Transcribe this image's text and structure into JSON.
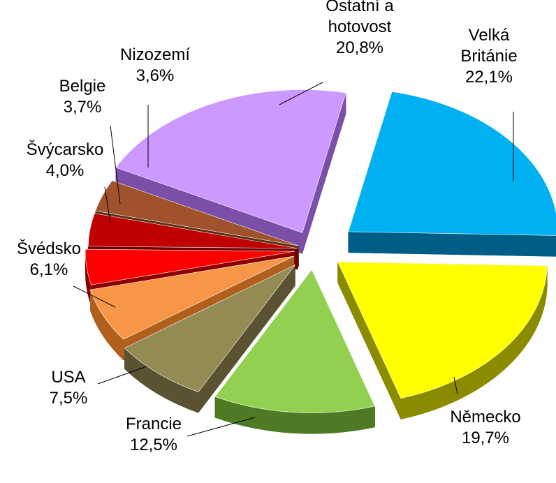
{
  "chart_data": {
    "type": "pie",
    "title": "",
    "slices": [
      {
        "label": "Velká Británie",
        "lines": [
          "Velká",
          "Británie"
        ],
        "value": 22.1,
        "value_text": "22,1%",
        "color": "#00B0F0",
        "side": "#005E86"
      },
      {
        "label": "Německo",
        "lines": [
          "Německo"
        ],
        "value": 19.7,
        "value_text": "19,7%",
        "color": "#FFFF00",
        "side": "#8B8B00"
      },
      {
        "label": "Francie",
        "lines": [
          "Francie"
        ],
        "value": 12.5,
        "value_text": "12,5%",
        "color": "#92D050",
        "side": "#4E7A25"
      },
      {
        "label": "USA",
        "lines": [
          "USA"
        ],
        "value": 7.5,
        "value_text": "7,5%",
        "color": "#948A54",
        "side": "#5A5230"
      },
      {
        "label": "Švédsko",
        "lines": [
          "Švédsko"
        ],
        "value": 6.1,
        "value_text": "6,1%",
        "color": "#F79646",
        "side": "#B0601C"
      },
      {
        "label": "Švýcarsko",
        "lines": [
          "Švýcarsko"
        ],
        "value": 4.0,
        "value_text": "4,0%",
        "color": "#FF0000",
        "side": "#8B0000"
      },
      {
        "label": "Belgie",
        "lines": [
          "Belgie"
        ],
        "value": 3.7,
        "value_text": "3,7%",
        "color": "#C00000",
        "side": "#6E0000"
      },
      {
        "label": "Nizozemí",
        "lines": [
          "Nizozemí"
        ],
        "value": 3.6,
        "value_text": "3,6%",
        "color": "#A0522D",
        "side": "#5C2E12"
      },
      {
        "label": "Ostatní a hotovost",
        "lines": [
          "Ostatní a",
          "hotovost"
        ],
        "value": 20.8,
        "value_text": "20,8%",
        "color": "#CC99FF",
        "side": "#7A4FA8"
      }
    ],
    "legend": "none",
    "style": "exploded 3D pie, percentage labels with leader lines"
  }
}
